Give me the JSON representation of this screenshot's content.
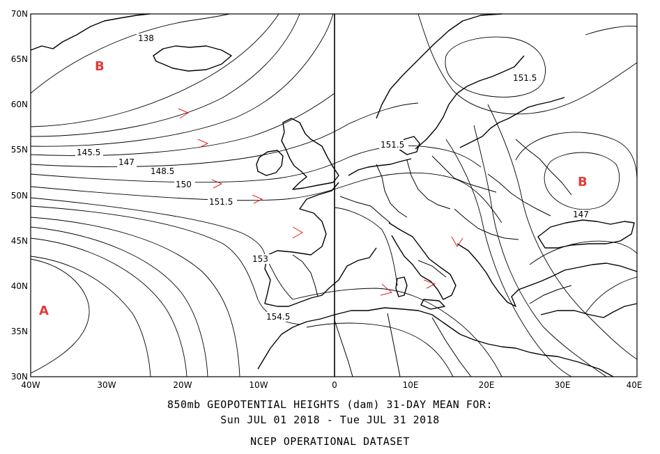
{
  "map": {
    "lat_labels": [
      "70N",
      "65N",
      "60N",
      "55N",
      "50N",
      "45N",
      "40N",
      "35N",
      "30N"
    ],
    "lon_labels": [
      "40W",
      "30W",
      "20W",
      "10W",
      "0",
      "10E",
      "20E",
      "30E",
      "40E"
    ],
    "contour_labels": [
      "138",
      "145.5",
      "147",
      "148.5",
      "150",
      "151.5",
      "153",
      "154.5",
      "151.5",
      "151.5",
      "147"
    ],
    "centers": [
      {
        "letter": "B",
        "color": "#e23a3a"
      },
      {
        "letter": "A",
        "color": "#e23a3a"
      },
      {
        "letter": "B",
        "color": "#e23a3a"
      }
    ],
    "wind_arrow_color": "#e02020"
  },
  "caption": {
    "line1": "850mb GEOPOTENTIAL HEIGHTS (dam)   31-DAY MEAN FOR:",
    "line2": "Sun JUL 01 2018 - Tue JUL 31 2018",
    "line3": "NCEP OPERATIONAL DATASET"
  }
}
